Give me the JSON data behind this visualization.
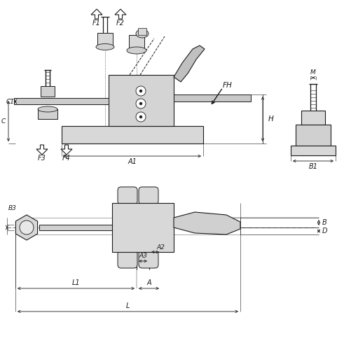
{
  "bg_color": "#ffffff",
  "lc": "#1a1a1a",
  "figsize": [
    4.91,
    5.0
  ],
  "dpi": 100,
  "labels": {
    "F1": "F1",
    "F2": "F2",
    "F3": "F3",
    "F4": "F4",
    "FH": "FH",
    "H": "H",
    "C1": "C1",
    "C": "C",
    "A1": "A1",
    "B1": "B1",
    "M": "M",
    "B3": "B3",
    "B": "B",
    "D": "D",
    "A2": "A2",
    "A3": "A3",
    "L1": "L1",
    "A": "A",
    "L": "L"
  }
}
